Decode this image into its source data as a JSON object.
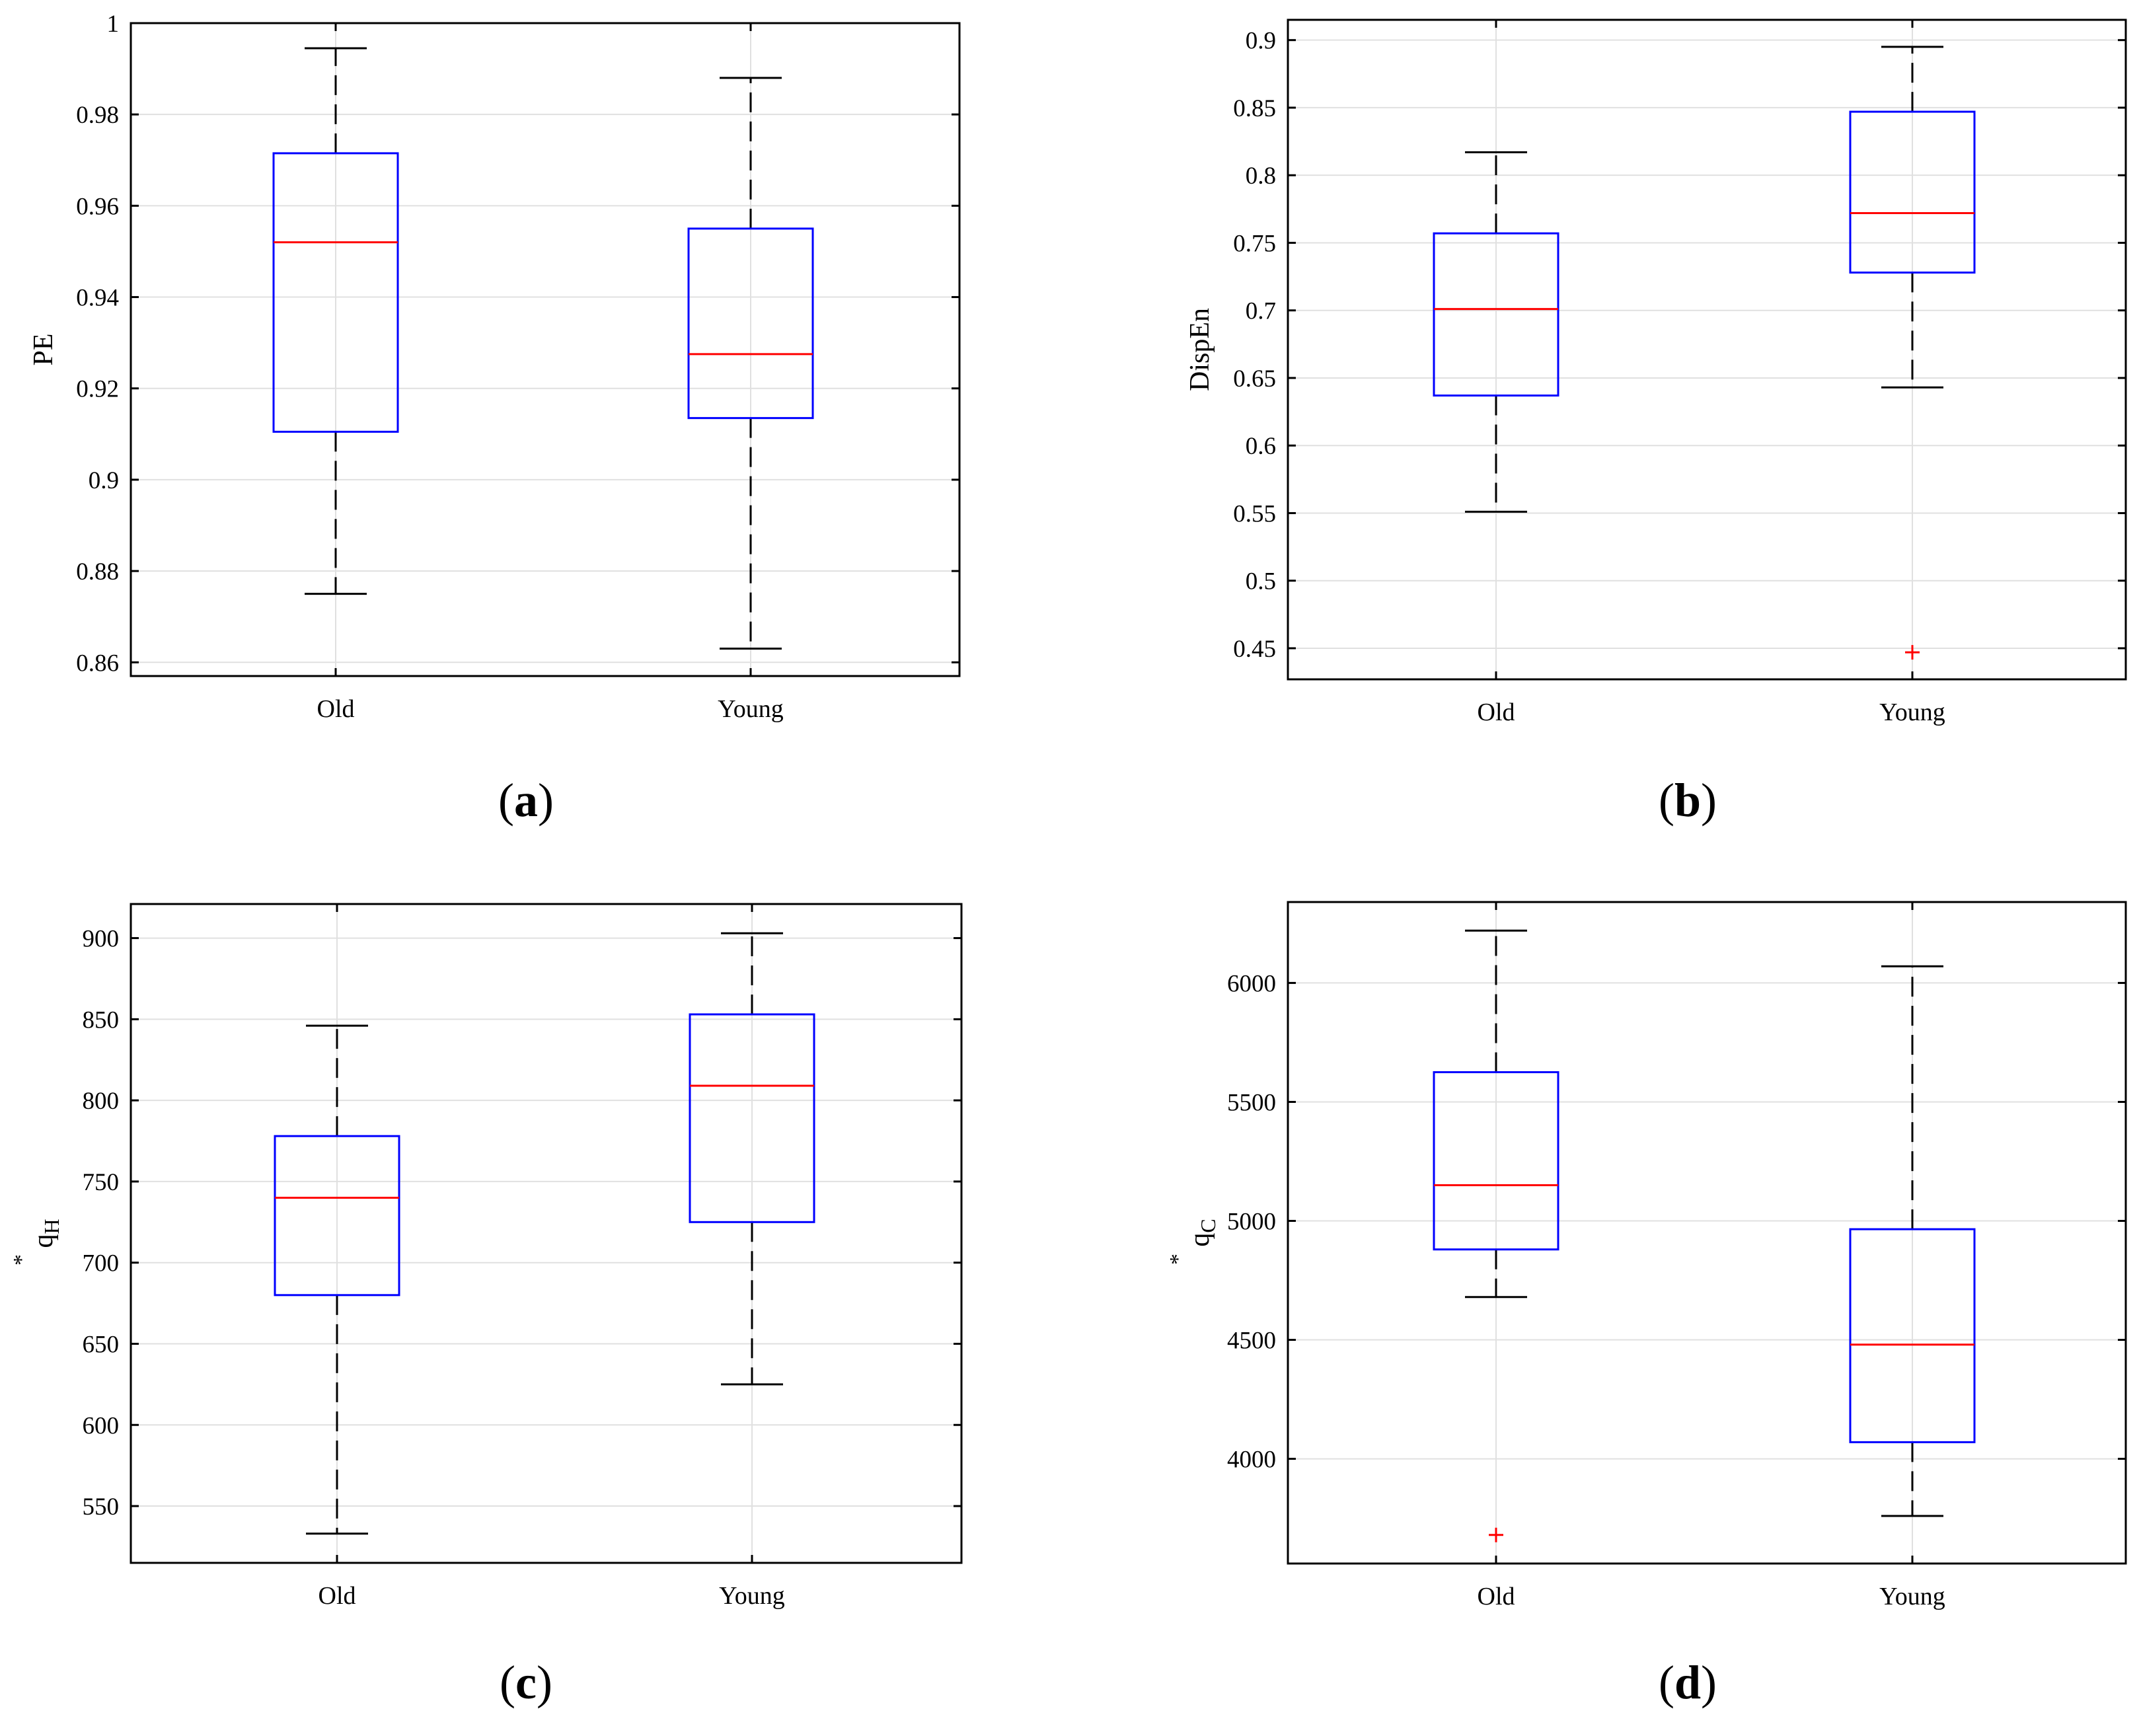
{
  "chart_data": [
    {
      "id": "a",
      "type": "boxplot",
      "panel_label": "a",
      "ylabel": "PE",
      "ylabel_sub": "",
      "ylim": [
        0.857,
        1.0
      ],
      "yticks": [
        0.86,
        0.88,
        0.9,
        0.92,
        0.94,
        0.96,
        0.98,
        1
      ],
      "ytick_labels": [
        "0.86",
        "0.88",
        "0.9",
        "0.92",
        "0.94",
        "0.96",
        "0.98",
        "1"
      ],
      "categories": [
        "Old",
        "Young"
      ],
      "boxes": [
        {
          "whisker_low": 0.875,
          "q1": 0.9105,
          "median": 0.952,
          "q3": 0.9715,
          "whisker_high": 0.9945,
          "outliers": []
        },
        {
          "whisker_low": 0.863,
          "q1": 0.9135,
          "median": 0.9275,
          "q3": 0.955,
          "whisker_high": 0.988,
          "outliers": []
        }
      ],
      "grid": true
    },
    {
      "id": "b",
      "type": "boxplot",
      "panel_label": "b",
      "ylabel": "DispEn",
      "ylabel_sub": "",
      "ylim": [
        0.427,
        0.915
      ],
      "yticks": [
        0.45,
        0.5,
        0.55,
        0.6,
        0.65,
        0.7,
        0.75,
        0.8,
        0.85,
        0.9
      ],
      "ytick_labels": [
        "0.45",
        "0.5",
        "0.55",
        "0.6",
        "0.65",
        "0.7",
        "0.75",
        "0.8",
        "0.85",
        "0.9"
      ],
      "categories": [
        "Old",
        "Young"
      ],
      "boxes": [
        {
          "whisker_low": 0.551,
          "q1": 0.637,
          "median": 0.701,
          "q3": 0.757,
          "whisker_high": 0.817,
          "outliers": []
        },
        {
          "whisker_low": 0.643,
          "q1": 0.728,
          "median": 0.772,
          "q3": 0.847,
          "whisker_high": 0.895,
          "outliers": [
            0.447
          ]
        }
      ],
      "grid": true
    },
    {
      "id": "c",
      "type": "boxplot",
      "panel_label": "c",
      "ylabel": "q",
      "ylabel_sub": "H",
      "ylabel_sup": "*",
      "ylim": [
        515,
        921
      ],
      "yticks": [
        550,
        600,
        650,
        700,
        750,
        800,
        850,
        900
      ],
      "ytick_labels": [
        "550",
        "600",
        "650",
        "700",
        "750",
        "800",
        "850",
        "900"
      ],
      "categories": [
        "Old",
        "Young"
      ],
      "boxes": [
        {
          "whisker_low": 533,
          "q1": 680,
          "median": 740,
          "q3": 778,
          "whisker_high": 846,
          "outliers": []
        },
        {
          "whisker_low": 625,
          "q1": 725,
          "median": 809,
          "q3": 853,
          "whisker_high": 903,
          "outliers": []
        }
      ],
      "grid": true
    },
    {
      "id": "d",
      "type": "boxplot",
      "panel_label": "d",
      "ylabel": "q",
      "ylabel_sub": "C",
      "ylabel_sup": "*",
      "ylim": [
        3560,
        6340
      ],
      "yticks": [
        4000,
        4500,
        5000,
        5500,
        6000
      ],
      "ytick_labels": [
        "4000",
        "4500",
        "5000",
        "5500",
        "6000"
      ],
      "categories": [
        "Old",
        "Young"
      ],
      "boxes": [
        {
          "whisker_low": 4680,
          "q1": 4880,
          "median": 5150,
          "q3": 5625,
          "whisker_high": 6220,
          "outliers": [
            3680
          ]
        },
        {
          "whisker_low": 3760,
          "q1": 4070,
          "median": 4480,
          "q3": 4965,
          "whisker_high": 6070,
          "outliers": []
        }
      ],
      "grid": true
    }
  ],
  "colors": {
    "box": "#0000ff",
    "median": "#ff0000",
    "outlier": "#ff0000",
    "whisker": "#000000",
    "grid": "#e0e0e0",
    "axis": "#000000"
  }
}
